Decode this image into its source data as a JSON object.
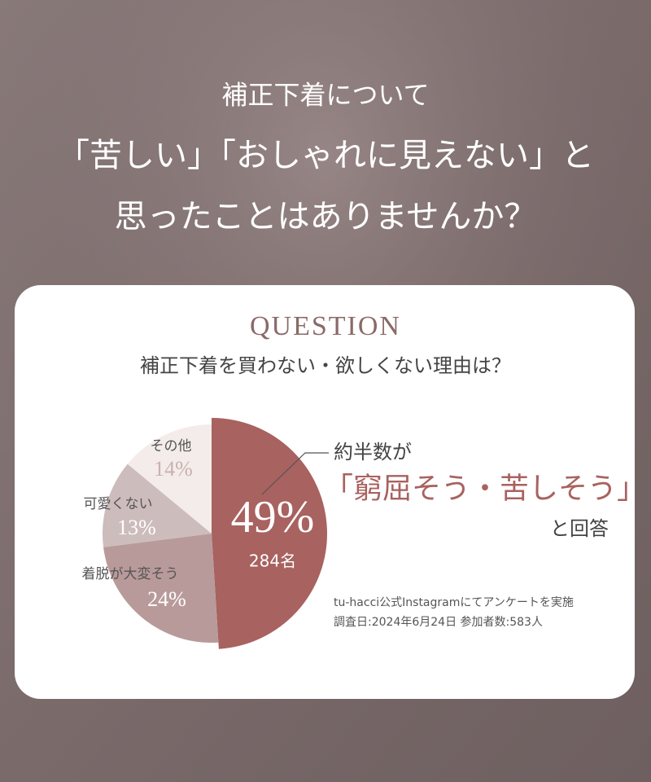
{
  "header": {
    "lines": [
      "補正下着について",
      "「苦しい」「おしゃれに見えない」と",
      "思ったことはありませんか？"
    ]
  },
  "chart_data": {
    "type": "pie",
    "title": "QUESTION",
    "subtitle": "補正下着を買わない・欲しくない理由は？",
    "categories": [
      null,
      "着脱が大変そう",
      "可愛くない",
      "その他"
    ],
    "values": [
      49,
      24,
      13,
      14
    ],
    "value_labels": [
      "49%",
      "24%",
      "13%",
      "14%"
    ],
    "colors": [
      "#a8625f",
      "#b99a9a",
      "#cdbcbc",
      "#f4ecea"
    ],
    "count_label": "284名",
    "callout": [
      "約半数が",
      "「窮屈そう・苦しそう」",
      "と回答"
    ],
    "notes": [
      "tu-hacci公式Instagramにてアンケートを実施",
      "調査日:2024年6月24日 参加者数:583人"
    ]
  }
}
